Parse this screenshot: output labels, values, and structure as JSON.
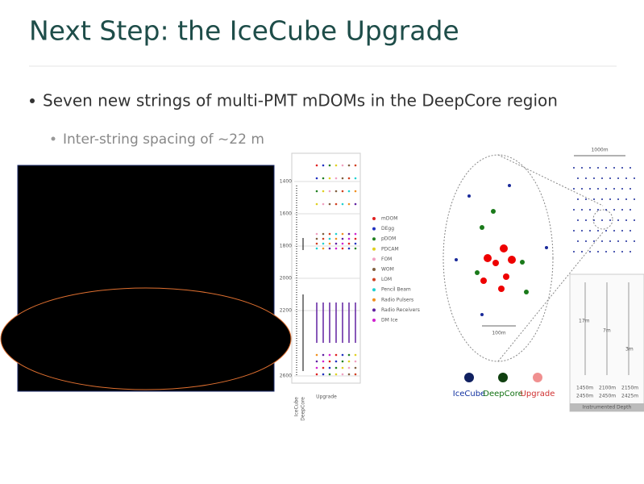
{
  "header": {
    "title": "Next Step: the IceCube Upgrade"
  },
  "bullets": [
    {
      "text": "Seven new strings of multi-PMT mDOMs in the DeepCore region",
      "sub": [
        "Inter-string spacing of ~22 m"
      ]
    }
  ],
  "depth_plot": {
    "y_labels": [
      "1400",
      "1600",
      "1800",
      "2000",
      "2200",
      "2600"
    ],
    "x_labels": [
      "IceCube",
      "DeepCore",
      "Upgrade"
    ],
    "legend": [
      {
        "label": "mDOM",
        "color": "#e02020"
      },
      {
        "label": "DEgg",
        "color": "#2030c0"
      },
      {
        "label": "pDOM",
        "color": "#208020"
      },
      {
        "label": "PDCAM",
        "color": "#e0d020"
      },
      {
        "label": "FOM",
        "color": "#f0a0c0"
      },
      {
        "label": "WOM",
        "color": "#806040"
      },
      {
        "label": "LOM",
        "color": "#d04020"
      },
      {
        "label": "Pencil Beam",
        "color": "#20d0d0"
      },
      {
        "label": "Radio Pulsers",
        "color": "#f09020"
      },
      {
        "label": "Radio Receivers",
        "color": "#6020a0"
      },
      {
        "label": "DM Ice",
        "color": "#d020d0"
      }
    ]
  },
  "layout_figure": {
    "scale_large": "1000m",
    "scale_small": "100m",
    "spacings": [
      "17m",
      "7m",
      "3m"
    ],
    "depths": [
      "1450m",
      "2450m",
      "2100m",
      "2450m",
      "2150m",
      "2425m"
    ],
    "depth_caption": "Instrumented Depth",
    "legend": [
      "IceCube",
      "DeepCore",
      "Upgrade"
    ]
  }
}
